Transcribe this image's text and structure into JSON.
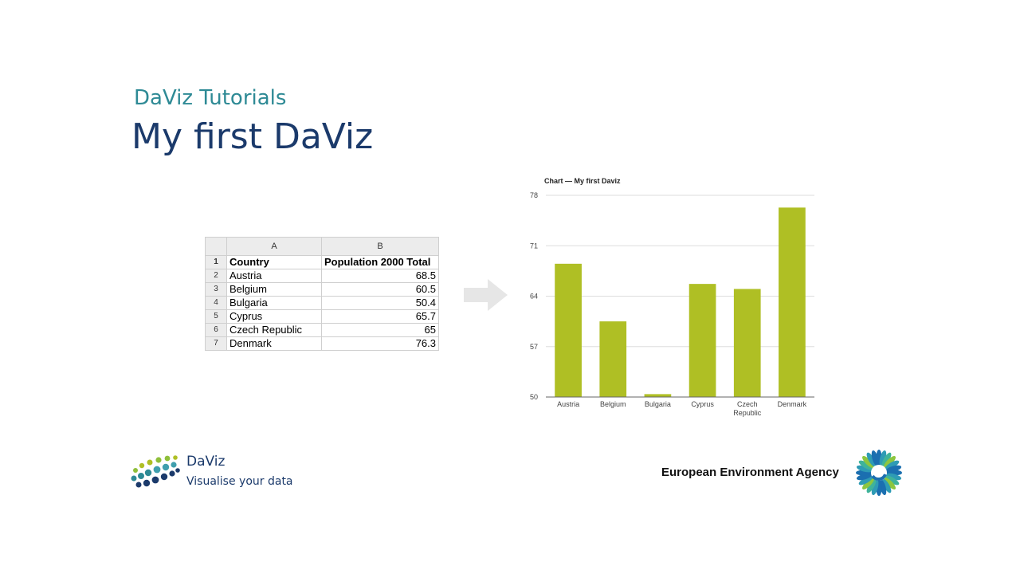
{
  "slide": {
    "subtitle": "DaViz Tutorials",
    "title": "My first DaViz"
  },
  "spreadsheet": {
    "column_headers": [
      "A",
      "B"
    ],
    "rows": [
      {
        "num": "1",
        "a": "Country",
        "b": "Population 2000 Total"
      },
      {
        "num": "2",
        "a": "Austria",
        "b": "68.5"
      },
      {
        "num": "3",
        "a": "Belgium",
        "b": "60.5"
      },
      {
        "num": "4",
        "a": "Bulgaria",
        "b": "50.4"
      },
      {
        "num": "5",
        "a": "Cyprus",
        "b": "65.7"
      },
      {
        "num": "6",
        "a": "Czech Republic",
        "b": "65"
      },
      {
        "num": "7",
        "a": "Denmark",
        "b": "76.3"
      }
    ]
  },
  "chart_data": {
    "type": "bar",
    "title": "Chart — My first Daviz",
    "categories": [
      "Austria",
      "Belgium",
      "Bulgaria",
      "Cyprus",
      "Czech Republic",
      "Denmark"
    ],
    "values": [
      68.5,
      60.5,
      50.4,
      65.7,
      65,
      76.3
    ],
    "ylim": [
      50,
      78
    ],
    "yticks": [
      50,
      57,
      64,
      71,
      78
    ],
    "xlabel": "",
    "ylabel": "",
    "grid": true,
    "legend": "none",
    "bar_color": "#afbf24"
  },
  "footer": {
    "daviz_name": "DaViz",
    "daviz_tagline": "Visualise your data",
    "eea_name": "European Environment Agency"
  },
  "colors": {
    "subtitle": "#2e8a95",
    "title": "#1b3a6b",
    "arrow": "#e6e6e6"
  }
}
